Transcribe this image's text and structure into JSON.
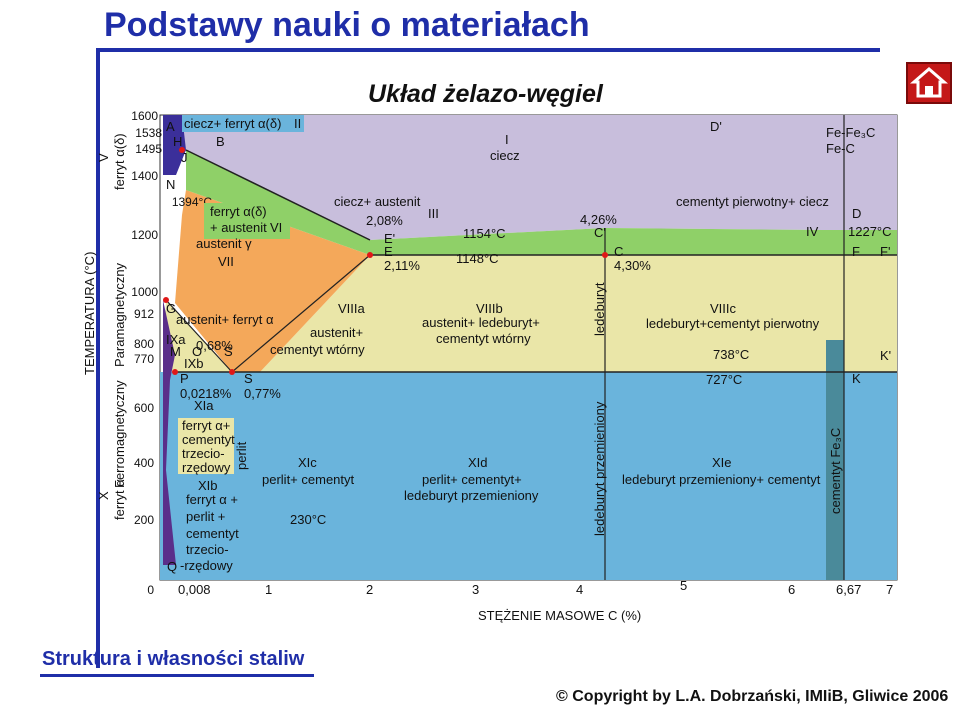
{
  "header": {
    "title": "Podstawy nauki o materiałach",
    "diagram_title": "Układ żelazo-węgiel"
  },
  "footer": {
    "section": "Struktura i własności staliw",
    "copyright": "© Copyright by L.A. Dobrzański, IMIiB, Gliwice 2006"
  },
  "nav": {
    "home_icon": "home-icon",
    "home_color": "#c41818"
  },
  "axes": {
    "y_title": "TEMPERATURA  (°C)",
    "y_side_lines": [
      "V",
      "ferryt α(δ)",
      "Ferromagnetyczny",
      "Paramagnetyczny",
      "X",
      "ferryt α"
    ],
    "y_ticks": [
      "1600",
      "1538",
      "1495",
      "1400",
      "1394°C",
      "1200",
      "1000",
      "912",
      "800",
      "770",
      "600",
      "400",
      "200",
      "0"
    ],
    "x_ticks": [
      "0,008",
      "1",
      "2",
      "3",
      "4",
      "5",
      "6",
      "6,67",
      "7"
    ],
    "x_title": "STĘŻENIE  MASOWE  C  (%)"
  },
  "points": {
    "A": "A",
    "H": "H",
    "B": "B",
    "J": "J",
    "N": "N",
    "G": "G",
    "M": "M",
    "O": "O",
    "P": "P",
    "Q": "Q",
    "S": "S",
    "E": "E",
    "E_prime": "E'",
    "C": "C",
    "C_prime": "C'",
    "D": "D",
    "D_prime": "D'",
    "F": "F",
    "F_prime": "F'",
    "K": "K",
    "K_prime": "K'"
  },
  "values": {
    "c_2_08": "2,08%",
    "c_2_11": "2,11%",
    "c_4_26": "4,26%",
    "c_4_30": "4,30%",
    "c_0_68": "0,68%",
    "c_0_77": "0,77%",
    "c_0_0218": "0,0218%",
    "t_1154": "1154°C",
    "t_1148": "1148°C",
    "t_1227": "1227°C",
    "t_738": "738°C",
    "t_727": "727°C",
    "t_230": "230°C",
    "fe_fe3c": "Fe-Fe₃C",
    "fe_c": "Fe-C"
  },
  "regions": {
    "I": "I",
    "I_label": "ciecz",
    "II_label": "ciecz+ ferryt α(δ)",
    "II": "II",
    "III_label": "ciecz+ austenit",
    "III": "III",
    "IV_label": "cementyt pierwotny+ ciecz",
    "IV": "IV",
    "VI_line1": "ferryt α(δ)",
    "VI_line2": "+ austenit",
    "VI": "VI",
    "VII_label": "austenit γ",
    "VII": "VII",
    "VIIIa": "VIIIa",
    "VIIIa_line1": "austenit+",
    "VIIIa_line2": "cementyt wtórny",
    "VIIIb": "VIIIb",
    "VIIIb_line1": "austenit+ ledeburyt+",
    "VIIIb_line2": "cementyt wtórny",
    "VIIIc": "VIIIc",
    "VIIIc_line1": "ledeburyt+cementyt pierwotny",
    "IX_label": "austenit+ ferryt α",
    "IXa": "IXa",
    "IXb": "IXb",
    "XIa": "XIa",
    "XIa_lines": [
      "ferryt α+",
      "cementyt",
      "trzecio-",
      "rzędowy"
    ],
    "XIb": "XIb",
    "XIb_lines": [
      "ferryt α +",
      "perlit +",
      "cementyt",
      "trzecio-",
      "-rzędowy"
    ],
    "perlit_vertical": "perlit",
    "XIc": "XIc",
    "XIc_line1": "perlit+ cementyt",
    "XId": "XId",
    "XId_line1": "perlit+ cementyt+",
    "XId_line2": "ledeburyt przemieniony",
    "XIe": "XIe",
    "XIe_line1": "ledeburyt przemieniony+ cementyt",
    "ledeburyt_vertical": "ledeburyt",
    "ledeburyt_przem_vertical": "ledeburyt przemieniony",
    "cementyt_vertical": "cementyt Fe₃C"
  },
  "colors": {
    "liquid": "#c8bedc",
    "green": "#8fd068",
    "orange": "#f4a85a",
    "yellow": "#eae6a8",
    "blue": "#6ab4dc",
    "navy": "#3b2f9a",
    "purple": "#5a2f8a",
    "teal": "#4a8a9a",
    "red_points": "#e01818",
    "label_box": "#eae6a8"
  }
}
